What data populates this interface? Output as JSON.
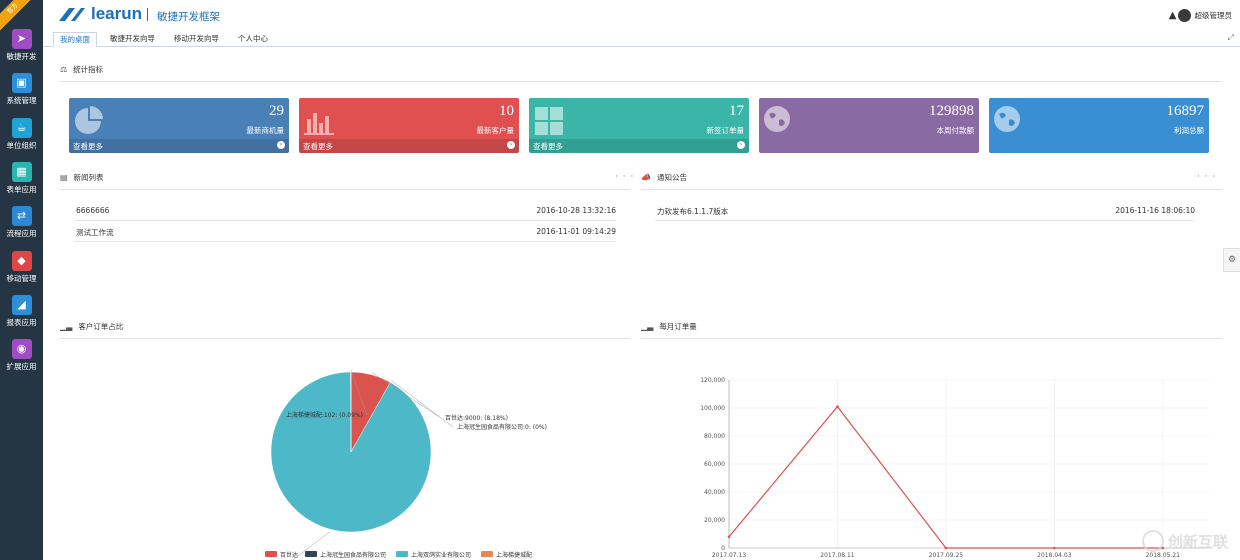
{
  "sidebar": {
    "ribbon": "官方",
    "items": [
      {
        "label": "敏捷开发",
        "icon": "paper-plane-icon",
        "color": "#a04cc4"
      },
      {
        "label": "系统管理",
        "icon": "monitor-icon",
        "color": "#2b8fd9"
      },
      {
        "label": "单位组织",
        "icon": "coffee-icon",
        "color": "#1fa2d6"
      },
      {
        "label": "表单应用",
        "icon": "table-icon",
        "color": "#2bb5b0"
      },
      {
        "label": "流程应用",
        "icon": "share-icon",
        "color": "#2c87d4"
      },
      {
        "label": "移动管理",
        "icon": "mobile-icon",
        "color": "#e04646"
      },
      {
        "label": "报表应用",
        "icon": "area-chart-icon",
        "color": "#2b8fd9"
      },
      {
        "label": "扩展应用",
        "icon": "plugin-icon",
        "color": "#a04cc4"
      }
    ]
  },
  "header": {
    "logo": "learun",
    "subtitle": "敏捷开发框架",
    "user": "超级管理员"
  },
  "tabs": [
    "我的桌面",
    "敏捷开发向导",
    "移动开发向导",
    "个人中心"
  ],
  "stats": {
    "title": "统计指标",
    "cards": [
      {
        "value": "29",
        "label": "最新商机量",
        "more": "查看更多",
        "color": "#4a80b8",
        "icon": "pie-chart-icon"
      },
      {
        "value": "10",
        "label": "最新客户量",
        "more": "查看更多",
        "color": "#e05050",
        "icon": "bar-chart-icon"
      },
      {
        "value": "17",
        "label": "新签订单量",
        "more": "查看更多",
        "color": "#3ab5a8",
        "icon": "windows-icon"
      },
      {
        "value": "129898",
        "label": "本周付款额",
        "more": "",
        "color": "#8a6aa3",
        "icon": "globe-icon"
      },
      {
        "value": "16897",
        "label": "利润总额",
        "more": "",
        "color": "#3a8fd3",
        "icon": "globe-icon"
      }
    ]
  },
  "news": {
    "title": "新闻列表",
    "more": "· · ·",
    "items": [
      {
        "title": "6666666",
        "date": "2016-10-28 13:32:16"
      },
      {
        "title": "测试工作流",
        "date": "2016-11-01 09:14:29"
      }
    ]
  },
  "notice": {
    "title": "通知公告",
    "more": "· · ·",
    "items": [
      {
        "title": "力软发布6.1.1.7版本",
        "date": "2016-11-16 18:06:10"
      }
    ]
  },
  "pie_section": {
    "title": "客户订单占比"
  },
  "line_section": {
    "title": "每月订单量"
  },
  "watermark": "创新互联",
  "chart_data": [
    {
      "type": "pie",
      "title": "客户订单占比",
      "slices": [
        {
          "name": "百世达",
          "value": 9000,
          "label": "百世达:9000: (8.18%)",
          "color": "#d9534f"
        },
        {
          "name": "上海冠生园食品有限公司",
          "value": 0,
          "label": "上海冠生园食品有限公司:0: (0%)",
          "color": "#2f4554"
        },
        {
          "name": "上海双鸽实业有限公司",
          "value": 100900,
          "label": "上海双鸽实业有限公司:100900: (91.73%)",
          "color": "#4cb8c8"
        },
        {
          "name": "上海梯捷城配",
          "value": 102,
          "label": "上海梯捷城配:102: (0.09%)",
          "color": "#e08a5a"
        }
      ],
      "legend": "bottom",
      "legend_labels": [
        "百世达",
        "上海冠生园食品有限公司",
        "上海双鸽实业有限公司",
        "上海梯捷城配"
      ]
    },
    {
      "type": "line",
      "title": "每月订单量",
      "categories": [
        "2017.07.13",
        "2017.08.11",
        "2017.09.25",
        "2018.04.03",
        "2018.05.21"
      ],
      "series": [
        {
          "values": [
            8000,
            101000,
            0,
            0,
            0
          ],
          "color": "#d9534f"
        }
      ],
      "ylim": [
        0,
        120000
      ],
      "yticks": [
        "0",
        "20,000",
        "40,000",
        "60,000",
        "80,000",
        "100,000",
        "120,000"
      ],
      "grid": true
    }
  ]
}
